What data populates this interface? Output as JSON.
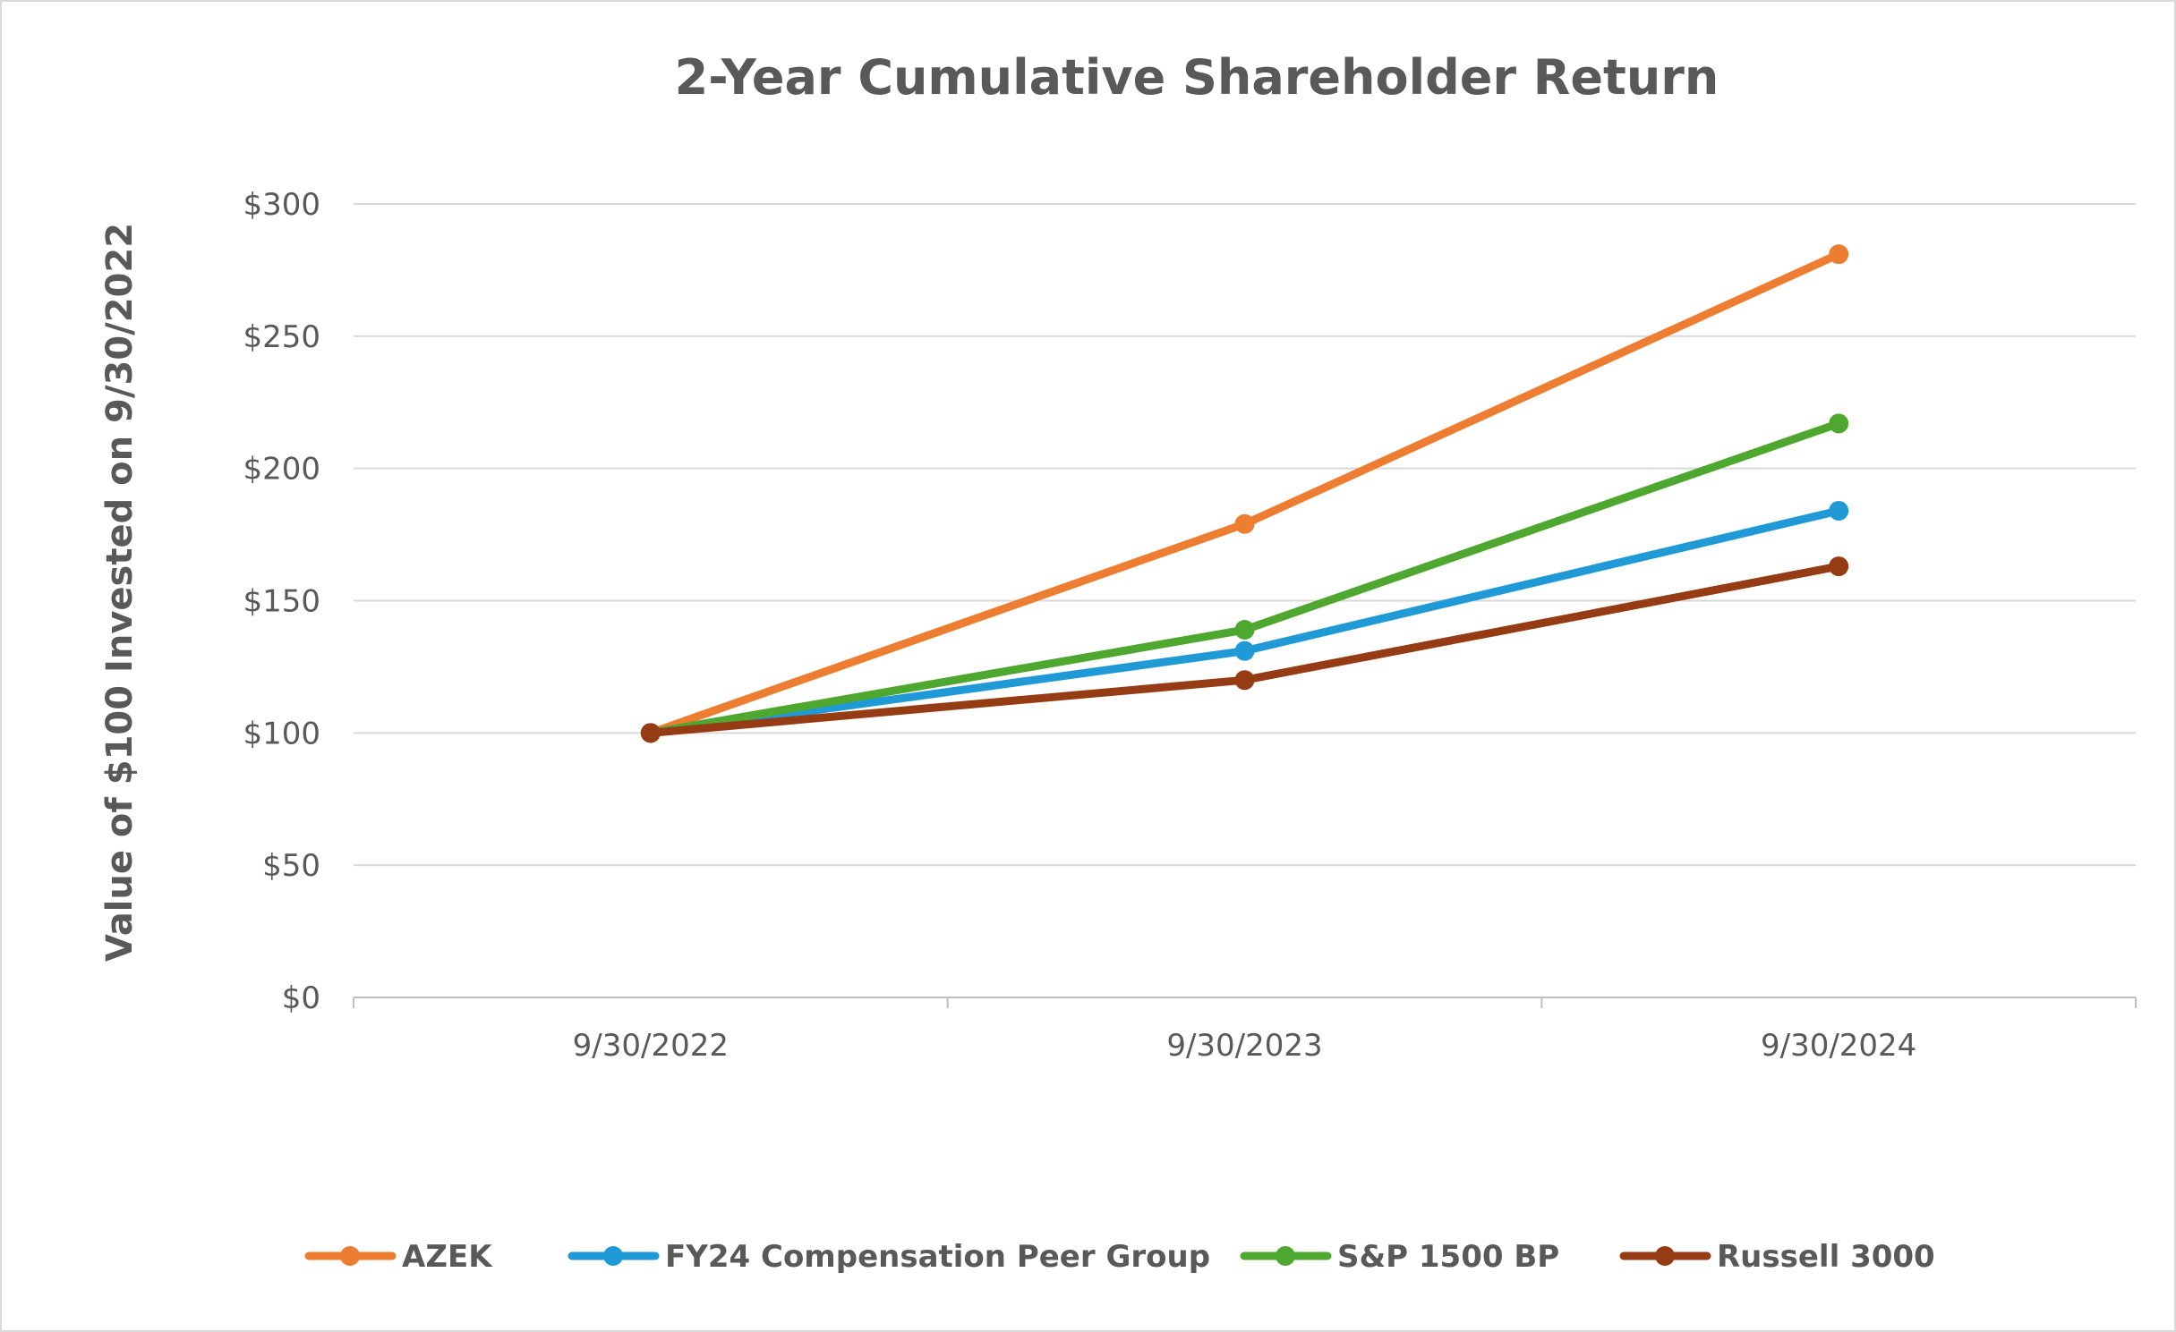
{
  "chart_data": {
    "type": "line",
    "title": "2-Year Cumulative Shareholder Return",
    "xlabel": "",
    "ylabel": "Value of $100 Invested on 9/30/2022",
    "categories": [
      "9/30/2022",
      "9/30/2023",
      "9/30/2024"
    ],
    "ylim": [
      0,
      300
    ],
    "yticks": [
      0,
      50,
      100,
      150,
      200,
      250,
      300
    ],
    "ytick_labels": [
      "$0",
      "$50",
      "$100",
      "$150",
      "$200",
      "$250",
      "$300"
    ],
    "grid": true,
    "legend_position": "bottom",
    "series": [
      {
        "name": "AZEK",
        "color": "#ed7d31",
        "values": [
          100,
          179,
          281
        ]
      },
      {
        "name": "FY24 Compensation Peer Group",
        "color": "#1f9ad6",
        "values": [
          100,
          131,
          184
        ]
      },
      {
        "name": "S&P 1500 BP",
        "color": "#4ea72e",
        "values": [
          100,
          139,
          217
        ]
      },
      {
        "name": "Russell 3000",
        "color": "#963c14",
        "values": [
          100,
          120,
          163
        ]
      }
    ]
  }
}
